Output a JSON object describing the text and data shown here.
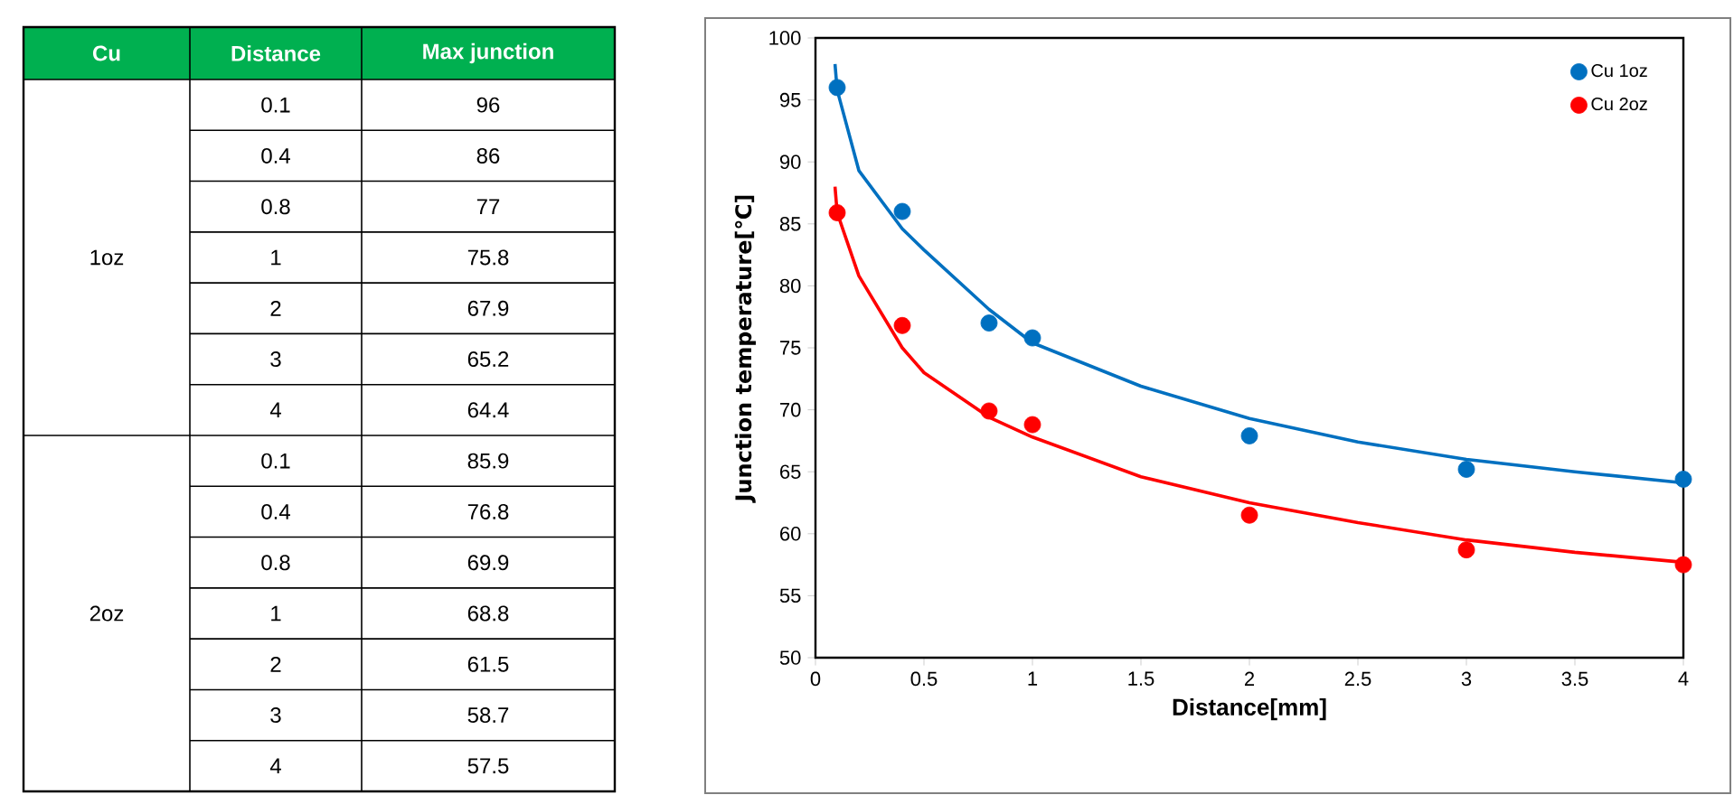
{
  "chart_data": [
    {
      "type": "other",
      "categories": [
        "1oz",
        "2oz"
      ],
      "annotations": [
        "Cu",
        "Distance",
        "Max junction",
        "0.1",
        "96",
        "0.4",
        "86",
        "0.8",
        "77",
        "1",
        "75.8",
        "2",
        "67.9",
        "3",
        "65.2",
        "4",
        "64.4",
        "0.1",
        "85.9",
        "0.4",
        "76.8",
        "0.8",
        "69.9",
        "1",
        "68.8",
        "2",
        "61.5",
        "3",
        "58.7",
        "4",
        "57.5"
      ]
    },
    {
      "type": "scatter",
      "xlabel": "Distance[mm]",
      "ylabel": "Junction temperature[℃]",
      "xlim": [
        0,
        4
      ],
      "xticks": [
        0,
        0.5,
        1,
        1.5,
        2,
        2.5,
        3,
        3.5,
        4
      ],
      "ylim": [
        50,
        100
      ],
      "yticks": [
        50,
        55,
        60,
        65,
        70,
        75,
        80,
        85,
        90,
        95,
        100
      ],
      "legend": "top right",
      "series": [
        {
          "name": "Cu 1oz",
          "marker": "circle",
          "color": "#0070c0",
          "x": [
            0.1,
            0.4,
            0.8,
            1,
            2,
            3,
            4
          ],
          "values": [
            96,
            86,
            77,
            75.8,
            67.9,
            65.2,
            64.4
          ]
        },
        {
          "name": "Cu 2oz",
          "marker": "circle",
          "color": "#ff0000",
          "x": [
            0.1,
            0.4,
            0.8,
            1,
            2,
            3,
            4
          ],
          "values": [
            85.9,
            76.8,
            69.9,
            68.8,
            61.5,
            58.7,
            57.5
          ]
        },
        {
          "type": "line",
          "marker": "none",
          "color": "#0070c0",
          "x": [
            0.09,
            0.1,
            0.2,
            0.4,
            0.5,
            0.8,
            1,
            1.5,
            2,
            2.5,
            3,
            3.5,
            4
          ],
          "values": [
            97.9,
            95.8,
            89.3,
            84.6,
            82.9,
            78.1,
            75.4,
            71.9,
            69.3,
            67.4,
            66,
            65,
            64.1
          ]
        },
        {
          "type": "line",
          "marker": "none",
          "color": "#ff0000",
          "x": [
            0.09,
            0.1,
            0.2,
            0.4,
            0.5,
            0.8,
            1,
            1.5,
            2,
            2.5,
            3,
            3.5,
            4
          ],
          "values": [
            88,
            85.9,
            80.8,
            75,
            73,
            69.4,
            67.8,
            64.6,
            62.5,
            60.9,
            59.5,
            58.5,
            57.7
          ]
        }
      ]
    }
  ]
}
